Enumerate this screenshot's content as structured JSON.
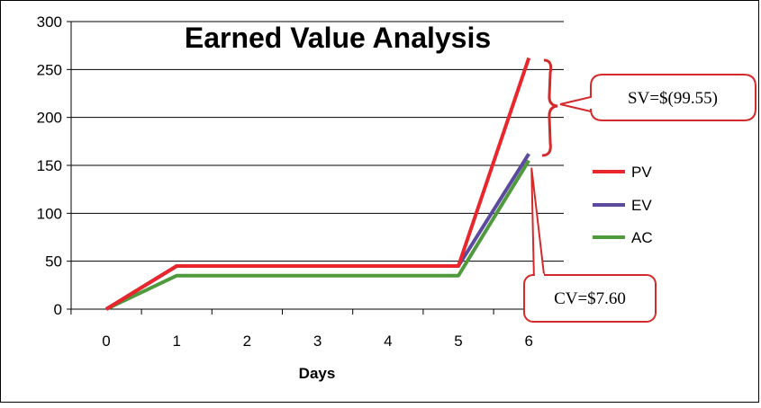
{
  "chart_data": {
    "type": "line",
    "title": "Earned Value Analysis",
    "xlabel": "Days",
    "ylabel": "",
    "x": [
      0,
      1,
      2,
      3,
      4,
      5,
      6
    ],
    "x_tick_labels": [
      "0",
      "1",
      "2",
      "3",
      "4",
      "5",
      "6"
    ],
    "ylim": [
      0,
      300
    ],
    "y_ticks": [
      0,
      50,
      100,
      150,
      200,
      250,
      300
    ],
    "grid": "horizontal",
    "legend_position": "right",
    "series": [
      {
        "name": "PV",
        "color": "#e8262c",
        "values": [
          0,
          45,
          45,
          45,
          45,
          45,
          262
        ]
      },
      {
        "name": "EV",
        "color": "#5b4a9e",
        "values": [
          0,
          45,
          45,
          45,
          45,
          45,
          162
        ]
      },
      {
        "name": "AC",
        "color": "#4e9a3c",
        "values": [
          0,
          35,
          35,
          35,
          35,
          35,
          155
        ]
      }
    ],
    "annotations": [
      {
        "text": "SV=$(99.55)",
        "type": "brace-callout",
        "anchor_series": "PV"
      },
      {
        "text": "CV=$7.60",
        "type": "pointer-callout",
        "anchor_series": "AC"
      }
    ]
  },
  "colors": {
    "callout_border": "#d42a2a",
    "gridline": "#000000",
    "background": "#ffffff"
  }
}
